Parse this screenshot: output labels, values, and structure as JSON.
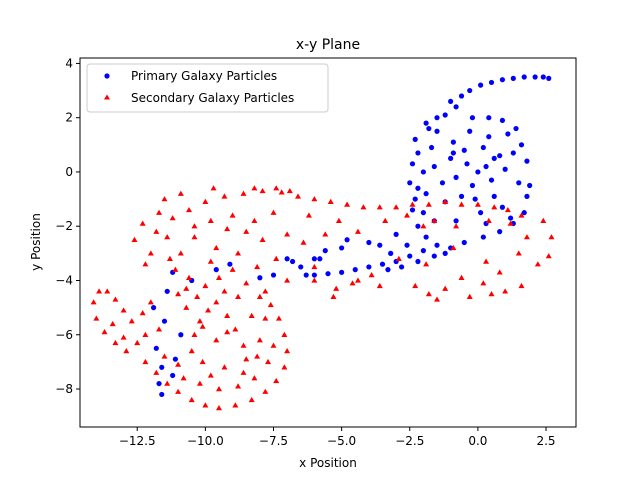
{
  "chart_data": {
    "type": "scatter",
    "title": "x-y Plane",
    "xlabel": "x Position",
    "ylabel": "y Position",
    "xlim": [
      -14.6,
      3.6
    ],
    "ylim": [
      -9.4,
      4.2
    ],
    "xticks": [
      -12.5,
      -10.0,
      -7.5,
      -5.0,
      -2.5,
      0.0,
      2.5
    ],
    "xtick_labels": [
      "−12.5",
      "−10.0",
      "−7.5",
      "−5.0",
      "−2.5",
      "0.0",
      "2.5"
    ],
    "yticks": [
      -8,
      -6,
      -4,
      -2,
      0,
      2,
      4
    ],
    "ytick_labels": [
      "−8",
      "−6",
      "−4",
      "−2",
      "0",
      "2",
      "4"
    ],
    "grid": false,
    "legend_position": "top-left",
    "series": [
      {
        "name": "Primary Galaxy Particles",
        "marker": "circle",
        "color": "#0000ff",
        "points": [
          [
            0.0,
            0.0
          ],
          [
            0.3,
            0.2
          ],
          [
            -0.4,
            0.3
          ],
          [
            0.5,
            -0.3
          ],
          [
            -0.2,
            -0.5
          ],
          [
            0.8,
            0.6
          ],
          [
            -0.8,
            -0.2
          ],
          [
            0.2,
            0.9
          ],
          [
            -0.5,
            0.8
          ],
          [
            1.0,
            0.1
          ],
          [
            -1.0,
            0.5
          ],
          [
            0.6,
            -0.9
          ],
          [
            -0.6,
            -0.9
          ],
          [
            1.3,
            0.7
          ],
          [
            -1.3,
            -0.4
          ],
          [
            0.4,
            1.3
          ],
          [
            -0.9,
            1.1
          ],
          [
            1.5,
            -0.4
          ],
          [
            -1.6,
            0.2
          ],
          [
            0.9,
            -1.3
          ],
          [
            -1.2,
            -1.1
          ],
          [
            1.6,
            1.0
          ],
          [
            -1.7,
            0.9
          ],
          [
            0.1,
            -1.5
          ],
          [
            1.8,
            -0.9
          ],
          [
            -1.9,
            -0.8
          ],
          [
            -0.3,
            1.5
          ],
          [
            1.1,
            1.4
          ],
          [
            -1.5,
            1.5
          ],
          [
            -2.0,
            0.0
          ],
          [
            -2.2,
            -0.6
          ],
          [
            -2.0,
            -1.5
          ],
          [
            -2.3,
            -1.0
          ],
          [
            -1.6,
            -1.8
          ],
          [
            -0.8,
            -1.8
          ],
          [
            0.3,
            -1.9
          ],
          [
            1.2,
            -1.7
          ],
          [
            -2.2,
            0.7
          ],
          [
            -1.8,
            1.6
          ],
          [
            -1.2,
            2.1
          ],
          [
            -0.8,
            2.4
          ],
          [
            -0.6,
            2.8
          ],
          [
            -1.0,
            2.6
          ],
          [
            -0.3,
            3.0
          ],
          [
            0.1,
            3.2
          ],
          [
            0.5,
            3.3
          ],
          [
            0.9,
            3.4
          ],
          [
            1.3,
            3.45
          ],
          [
            1.7,
            3.5
          ],
          [
            2.1,
            3.5
          ],
          [
            2.4,
            3.5
          ],
          [
            2.6,
            3.45
          ],
          [
            -1.5,
            2.0
          ],
          [
            -1.9,
            1.8
          ],
          [
            -2.3,
            1.2
          ],
          [
            -2.4,
            0.3
          ],
          [
            -2.5,
            -0.4
          ],
          [
            -2.4,
            -1.4
          ],
          [
            -2.2,
            -2.0
          ],
          [
            -1.9,
            -2.4
          ],
          [
            -1.5,
            -2.7
          ],
          [
            -1.0,
            -2.8
          ],
          [
            -2.0,
            -2.9
          ],
          [
            -2.5,
            -3.1
          ],
          [
            -3.0,
            -3.3
          ],
          [
            -3.5,
            -3.4
          ],
          [
            -4.0,
            -3.5
          ],
          [
            -4.5,
            -3.6
          ],
          [
            -5.0,
            -3.7
          ],
          [
            -5.5,
            -3.75
          ],
          [
            -6.0,
            -3.8
          ],
          [
            -6.3,
            -3.8
          ],
          [
            -2.2,
            -3.3
          ],
          [
            -2.8,
            -3.5
          ],
          [
            -3.3,
            -3.6
          ],
          [
            -1.6,
            -3.1
          ],
          [
            -1.2,
            -3.0
          ],
          [
            -0.5,
            -2.6
          ],
          [
            0.2,
            -2.4
          ],
          [
            0.8,
            -2.2
          ],
          [
            1.3,
            -1.9
          ],
          [
            1.7,
            -1.5
          ],
          [
            1.9,
            -0.5
          ],
          [
            1.8,
            0.4
          ],
          [
            1.4,
            1.6
          ],
          [
            0.9,
            1.9
          ],
          [
            0.4,
            2.0
          ],
          [
            -0.2,
            2.0
          ],
          [
            -5.0,
            -2.8
          ],
          [
            -4.0,
            -2.6
          ],
          [
            -3.0,
            -2.3
          ],
          [
            -2.6,
            -2.7
          ],
          [
            -3.6,
            -2.7
          ],
          [
            -6.0,
            -3.2
          ],
          [
            -6.5,
            -3.5
          ],
          [
            -5.6,
            -2.9
          ],
          [
            -7.0,
            -3.2
          ],
          [
            -7.5,
            -3.8
          ],
          [
            -8.0,
            -3.9
          ],
          [
            -11.5,
            -5.5
          ],
          [
            -11.8,
            -6.5
          ],
          [
            -11.6,
            -7.2
          ],
          [
            -11.7,
            -7.8
          ],
          [
            -11.6,
            -8.2
          ],
          [
            -11.2,
            -7.5
          ],
          [
            -11.1,
            -6.9
          ],
          [
            -11.9,
            -5.0
          ],
          [
            -11.4,
            -4.4
          ],
          [
            -11.2,
            -3.7
          ],
          [
            -10.9,
            -6.0
          ],
          [
            -10.5,
            -4.0
          ],
          [
            -9.6,
            -3.6
          ],
          [
            -9.1,
            -3.4
          ],
          [
            -6.8,
            -3.3
          ],
          [
            -5.8,
            -3.2
          ],
          [
            -4.8,
            -2.5
          ],
          [
            -3.2,
            -3.0
          ],
          [
            -0.9,
            0.7
          ],
          [
            0.6,
            0.5
          ],
          [
            -0.1,
            -1.0
          ]
        ]
      },
      {
        "name": "Secondary Galaxy Particles",
        "marker": "triangle",
        "color": "#ff0000",
        "points": [
          [
            -9.6,
            -4.8
          ],
          [
            -9.3,
            -4.4
          ],
          [
            -10.0,
            -4.2
          ],
          [
            -9.9,
            -5.1
          ],
          [
            -9.2,
            -5.3
          ],
          [
            -10.3,
            -4.6
          ],
          [
            -9.5,
            -3.9
          ],
          [
            -8.8,
            -4.6
          ],
          [
            -10.2,
            -5.5
          ],
          [
            -8.9,
            -5.8
          ],
          [
            -10.6,
            -3.9
          ],
          [
            -10.7,
            -5.0
          ],
          [
            -9.0,
            -3.6
          ],
          [
            -8.5,
            -4.1
          ],
          [
            -8.3,
            -5.3
          ],
          [
            -10.4,
            -6.0
          ],
          [
            -9.6,
            -6.2
          ],
          [
            -8.6,
            -6.4
          ],
          [
            -11.0,
            -4.5
          ],
          [
            -11.1,
            -3.6
          ],
          [
            -10.9,
            -3.0
          ],
          [
            -10.4,
            -2.4
          ],
          [
            -9.6,
            -2.8
          ],
          [
            -8.8,
            -3.0
          ],
          [
            -8.1,
            -3.5
          ],
          [
            -7.8,
            -4.4
          ],
          [
            -7.8,
            -5.4
          ],
          [
            -8.1,
            -6.8
          ],
          [
            -8.6,
            -7.4
          ],
          [
            -9.3,
            -7.2
          ],
          [
            -10.1,
            -7.0
          ],
          [
            -10.5,
            -6.6
          ],
          [
            -11.3,
            -3.2
          ],
          [
            -11.4,
            -2.4
          ],
          [
            -11.2,
            -1.7
          ],
          [
            -10.6,
            -1.4
          ],
          [
            -10.0,
            -1.1
          ],
          [
            -9.3,
            -0.9
          ],
          [
            -8.6,
            -0.8
          ],
          [
            -7.9,
            -0.7
          ],
          [
            -7.2,
            -0.75
          ],
          [
            -6.6,
            -0.9
          ],
          [
            -6.0,
            -1.0
          ],
          [
            -5.4,
            -1.1
          ],
          [
            -4.8,
            -1.2
          ],
          [
            -4.2,
            -1.3
          ],
          [
            -3.6,
            -1.3
          ],
          [
            -3.0,
            -1.3
          ],
          [
            -2.4,
            -1.2
          ],
          [
            -1.8,
            -1.2
          ],
          [
            -1.2,
            -1.1
          ],
          [
            -0.6,
            -1.2
          ],
          [
            0.0,
            -1.2
          ],
          [
            0.6,
            -1.3
          ],
          [
            1.1,
            -1.4
          ],
          [
            1.6,
            -1.6
          ],
          [
            -12.3,
            -1.9
          ],
          [
            -12.6,
            -2.5
          ],
          [
            -12.0,
            -3.0
          ],
          [
            -11.8,
            -2.2
          ],
          [
            -12.2,
            -3.4
          ],
          [
            -11.7,
            -1.5
          ],
          [
            -11.5,
            -1.0
          ],
          [
            -10.9,
            -0.8
          ],
          [
            -9.7,
            -0.6
          ],
          [
            -8.2,
            -0.6
          ],
          [
            -7.4,
            -0.6
          ],
          [
            -6.9,
            -0.7
          ],
          [
            -7.5,
            -1.5
          ],
          [
            -8.2,
            -1.8
          ],
          [
            -9.0,
            -1.6
          ],
          [
            -9.8,
            -1.8
          ],
          [
            -10.4,
            -2.0
          ],
          [
            -6.2,
            -1.6
          ],
          [
            -5.1,
            -1.8
          ],
          [
            -4.4,
            -2.2
          ],
          [
            -3.4,
            -1.8
          ],
          [
            -2.6,
            -1.6
          ],
          [
            -2.0,
            -2.0
          ],
          [
            -1.6,
            -1.8
          ],
          [
            -0.8,
            -2.0
          ],
          [
            0.4,
            -1.8
          ],
          [
            1.2,
            -1.9
          ],
          [
            1.8,
            -2.4
          ],
          [
            2.4,
            -1.8
          ],
          [
            2.7,
            -2.4
          ],
          [
            2.6,
            -3.1
          ],
          [
            2.2,
            -3.4
          ],
          [
            1.5,
            -3.0
          ],
          [
            0.8,
            -3.7
          ],
          [
            0.2,
            -4.1
          ],
          [
            -0.6,
            -3.9
          ],
          [
            -1.2,
            -4.3
          ],
          [
            -1.8,
            -4.5
          ],
          [
            -2.3,
            -4.2
          ],
          [
            -3.6,
            -4.2
          ],
          [
            -4.4,
            -4.0
          ],
          [
            -5.2,
            -4.3
          ],
          [
            -6.0,
            -4.0
          ],
          [
            -7.0,
            -4.0
          ],
          [
            -11.7,
            -5.8
          ],
          [
            -12.2,
            -6.0
          ],
          [
            -12.5,
            -6.3
          ],
          [
            -12.9,
            -6.6
          ],
          [
            -13.3,
            -6.3
          ],
          [
            -13.7,
            -5.9
          ],
          [
            -14.0,
            -5.4
          ],
          [
            -14.1,
            -4.8
          ],
          [
            -13.9,
            -4.4
          ],
          [
            -13.6,
            -4.4
          ],
          [
            -13.3,
            -4.7
          ],
          [
            -13.0,
            -5.1
          ],
          [
            -12.7,
            -5.5
          ],
          [
            -12.3,
            -5.2
          ],
          [
            -12.0,
            -4.8
          ],
          [
            -13.4,
            -5.6
          ],
          [
            -13.0,
            -6.1
          ],
          [
            -12.2,
            -7.0
          ],
          [
            -11.8,
            -7.4
          ],
          [
            -11.4,
            -7.8
          ],
          [
            -11.0,
            -8.1
          ],
          [
            -10.5,
            -8.4
          ],
          [
            -10.0,
            -8.6
          ],
          [
            -9.5,
            -8.7
          ],
          [
            -8.9,
            -8.6
          ],
          [
            -8.3,
            -8.4
          ],
          [
            -7.8,
            -8.1
          ],
          [
            -7.4,
            -7.7
          ],
          [
            -7.1,
            -7.2
          ],
          [
            -7.0,
            -6.6
          ],
          [
            -7.1,
            -6.0
          ],
          [
            -7.3,
            -5.4
          ],
          [
            -7.6,
            -4.9
          ],
          [
            -8.0,
            -4.6
          ],
          [
            -10.8,
            -7.6
          ],
          [
            -10.2,
            -7.8
          ],
          [
            -9.5,
            -8.0
          ],
          [
            -8.8,
            -7.9
          ],
          [
            -8.2,
            -7.6
          ],
          [
            -7.7,
            -7.0
          ],
          [
            -7.5,
            -6.4
          ],
          [
            -11.5,
            -6.8
          ],
          [
            -11.0,
            -7.1
          ],
          [
            -9.8,
            -7.5
          ],
          [
            -8.5,
            -6.9
          ],
          [
            -8.0,
            -6.2
          ],
          [
            -7.9,
            -2.5
          ],
          [
            -7.0,
            -2.3
          ],
          [
            -6.4,
            -2.6
          ],
          [
            -5.6,
            -2.3
          ],
          [
            -8.5,
            -2.2
          ],
          [
            -9.2,
            -2.1
          ],
          [
            -7.4,
            -3.2
          ],
          [
            -6.0,
            -3.5
          ],
          [
            -5.3,
            -4.6
          ],
          [
            -4.6,
            -4.1
          ],
          [
            -3.9,
            -3.8
          ],
          [
            -2.9,
            -3.2
          ],
          [
            -1.9,
            -3.4
          ],
          [
            -0.9,
            -2.8
          ],
          [
            0.3,
            -3.3
          ],
          [
            1.0,
            -4.4
          ],
          [
            1.6,
            -4.2
          ],
          [
            0.5,
            -4.5
          ],
          [
            -1.5,
            -4.7
          ],
          [
            -0.3,
            -4.6
          ],
          [
            -9.8,
            -3.3
          ],
          [
            -9.2,
            -5.9
          ],
          [
            -10.1,
            -5.7
          ],
          [
            -10.7,
            -4.3
          ]
        ]
      }
    ]
  }
}
